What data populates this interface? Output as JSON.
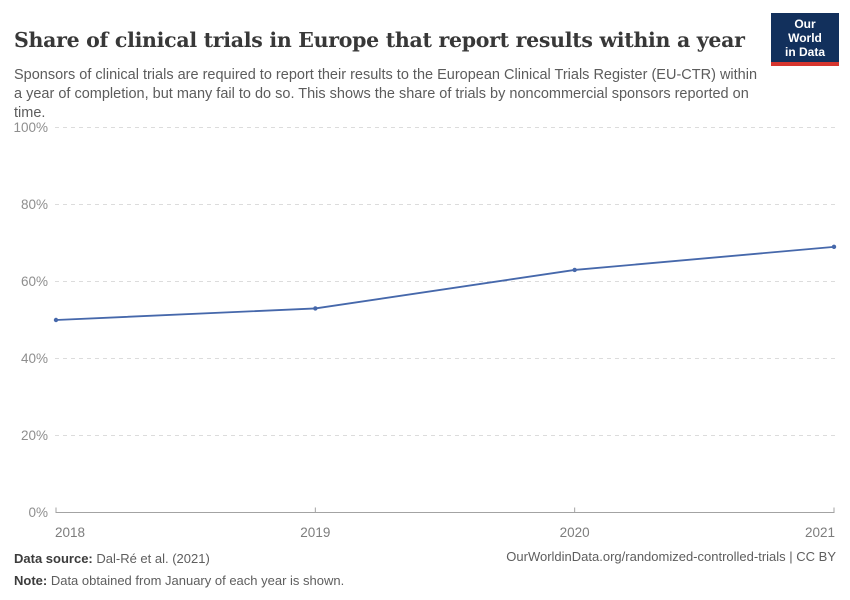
{
  "header": {
    "title": "Share of clinical trials in Europe that report results within a year",
    "subtitle": "Sponsors of clinical trials are required to report their results to the European Clinical Trials Register (EU-CTR) within a year of completion, but many fail to do so. This shows the share of trials by noncommercial sponsors reported on time.",
    "logo": {
      "line1": "Our World",
      "line2": "in Data",
      "bg_color": "#12305c",
      "accent_color": "#d7352e"
    }
  },
  "chart_data": {
    "type": "line",
    "title": "Share of clinical trials in Europe that report results within a year",
    "x": [
      2018,
      2019,
      2020,
      2021
    ],
    "categories": [
      "2018",
      "2019",
      "2020",
      "2021"
    ],
    "series": [
      {
        "name": "Share of trials by noncommercial sponsors reported on time",
        "values": [
          50,
          53,
          63,
          69
        ]
      }
    ],
    "xlabel": "",
    "ylabel": "",
    "ylim": [
      0,
      100
    ],
    "yticks": [
      0,
      20,
      40,
      60,
      80,
      100
    ],
    "ytick_labels": [
      "0%",
      "20%",
      "40%",
      "60%",
      "80%",
      "100%"
    ],
    "grid": "horizontal-dashed",
    "legend": "none",
    "line_color": "#4668ab",
    "gridline_color": "#dcdcdc",
    "axis_color": "#a3a3a3",
    "ytick_label_color": "#8e8e8e",
    "xtick_label_color": "#7d7d7d"
  },
  "footer": {
    "source_label": "Data source:",
    "source_value": " Dal-Ré et al. (2021)",
    "note_label": "Note:",
    "note_value": " Data obtained from January of each year is shown.",
    "link": "OurWorldinData.org/randomized-controlled-trials | CC BY"
  }
}
